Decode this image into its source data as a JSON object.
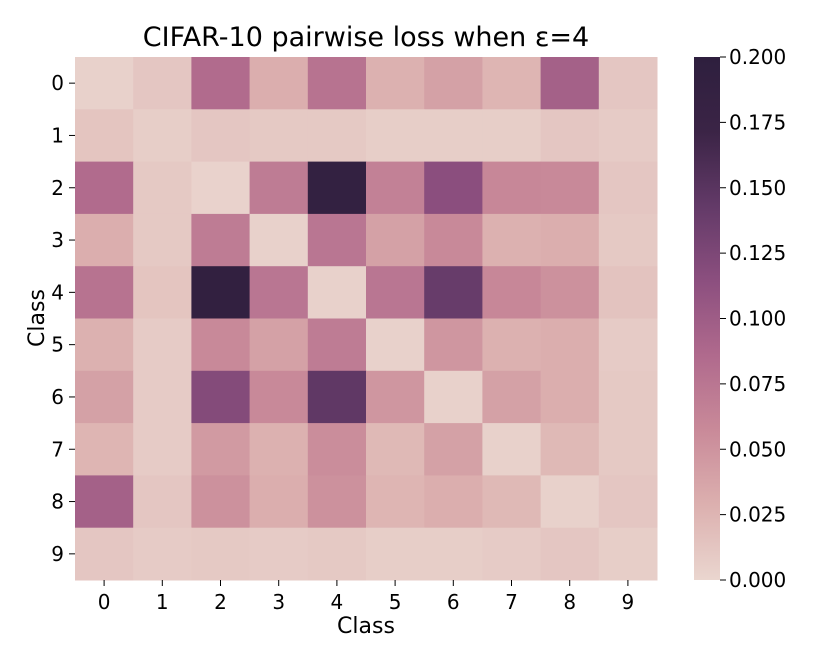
{
  "chart_data": {
    "type": "heatmap",
    "title": "CIFAR-10 pairwise loss when ε=4",
    "xlabel": "Class",
    "ylabel": "Class",
    "x_categories": [
      "0",
      "1",
      "2",
      "3",
      "4",
      "5",
      "6",
      "7",
      "8",
      "9"
    ],
    "y_categories": [
      "0",
      "1",
      "2",
      "3",
      "4",
      "5",
      "6",
      "7",
      "8",
      "9"
    ],
    "values": [
      [
        0.004,
        0.012,
        0.085,
        0.03,
        0.078,
        0.028,
        0.04,
        0.025,
        0.095,
        0.012
      ],
      [
        0.013,
        0.006,
        0.012,
        0.01,
        0.01,
        0.006,
        0.006,
        0.006,
        0.012,
        0.008
      ],
      [
        0.085,
        0.01,
        0.003,
        0.07,
        0.19,
        0.065,
        0.115,
        0.06,
        0.058,
        0.012
      ],
      [
        0.03,
        0.01,
        0.07,
        0.004,
        0.075,
        0.04,
        0.058,
        0.028,
        0.03,
        0.01
      ],
      [
        0.078,
        0.013,
        0.192,
        0.075,
        0.004,
        0.075,
        0.14,
        0.06,
        0.052,
        0.014
      ],
      [
        0.028,
        0.008,
        0.058,
        0.04,
        0.07,
        0.004,
        0.048,
        0.028,
        0.03,
        0.008
      ],
      [
        0.04,
        0.008,
        0.12,
        0.058,
        0.145,
        0.048,
        0.004,
        0.04,
        0.03,
        0.01
      ],
      [
        0.025,
        0.008,
        0.045,
        0.028,
        0.055,
        0.022,
        0.04,
        0.004,
        0.022,
        0.01
      ],
      [
        0.095,
        0.012,
        0.052,
        0.03,
        0.052,
        0.025,
        0.03,
        0.022,
        0.004,
        0.012
      ],
      [
        0.012,
        0.008,
        0.01,
        0.008,
        0.01,
        0.006,
        0.006,
        0.008,
        0.012,
        0.006
      ]
    ],
    "colorbar": {
      "min": 0.0,
      "max": 0.2,
      "ticks": [
        "0.000",
        "0.025",
        "0.050",
        "0.075",
        "0.100",
        "0.125",
        "0.150",
        "0.175",
        "0.200"
      ]
    },
    "colormap": [
      "#ead6cf",
      "#dcb0af",
      "#c98a99",
      "#b06a8d",
      "#8c4f7f",
      "#633a68",
      "#3b2446",
      "#2e1f3e"
    ]
  }
}
